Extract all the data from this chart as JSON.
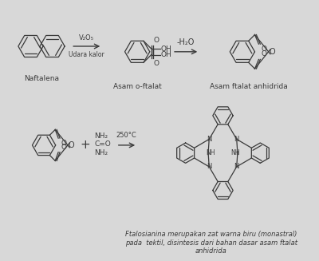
{
  "bg_color": "#d8d8d8",
  "line_color": "#3a3a3a",
  "text_color": "#3a3a3a",
  "lw": 0.9,
  "structures": {
    "naphthalene_label": "Naftalena",
    "asam_o_ftalat_label": "Asam o-ftalat",
    "asam_ftalat_label": "Asam ftalat anhidrida",
    "arrow1_label_top": "V₂O₅",
    "arrow1_label_bot": "Udara kalor",
    "arrow2_label": "-H₂O",
    "plus_label": "+",
    "urea_top": "NH₂",
    "urea_mid": "C=O",
    "urea_bot": "NH₂",
    "temp_label": "250°C",
    "ftalosianina_caption": "Ftalosianina merupakan zat warna biru (monastral)\npada  tektil, disintesis dari bahan dasar asam ftalat\nanhidrida"
  }
}
